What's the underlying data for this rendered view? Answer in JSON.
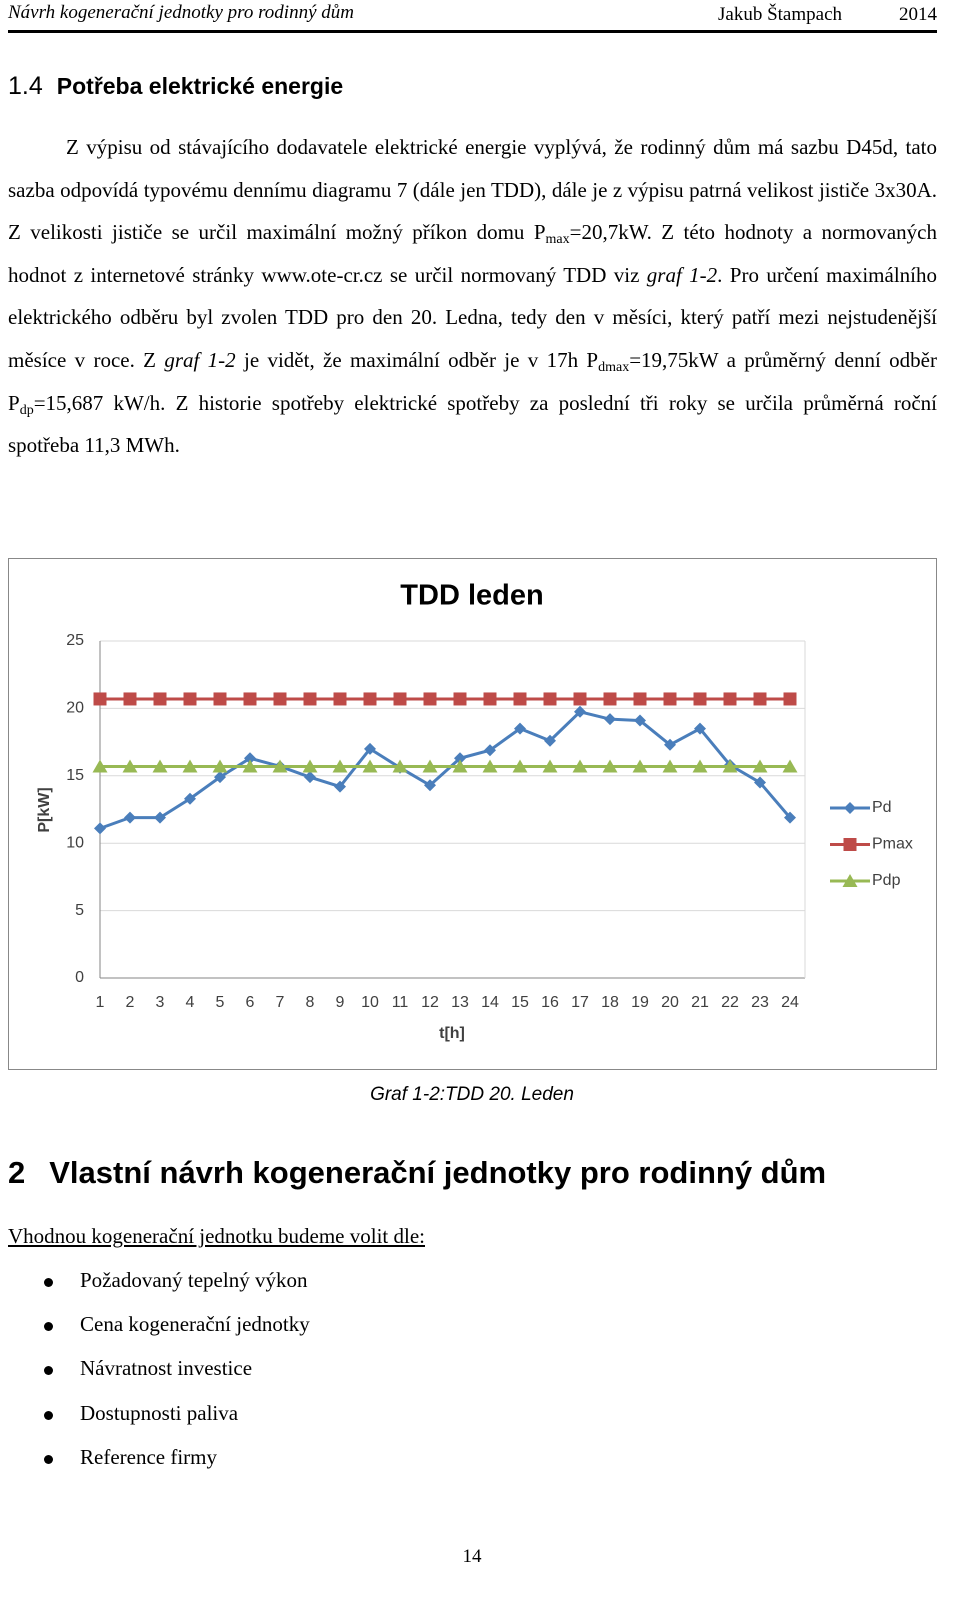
{
  "header": {
    "title": "Návrh kogenerační jednotky pro rodinný dům",
    "author": "Jakub Štampach",
    "year": "2014"
  },
  "section": {
    "number": "1.4",
    "title": "Potřeba elektrické energie"
  },
  "paragraph": [
    "Z výpisu od stávajícího dodavatele elektrické energie vyplývá, že rodinný dům má sazbu D45d, tato sazba odpovídá typovému dennímu diagramu 7 (dále jen TDD), dále je z výpisu patrná velikost jističe 3x30A. Z velikosti jističe se určil maximální možný příkon domu P",
    {
      "text": "max",
      "style": "sub"
    },
    "=20,7kW. Z této hodnoty a normovaných hodnot z internetové stránky www.ote-cr.cz se určil normovaný TDD viz ",
    {
      "text": "graf 1-2",
      "style": "italic"
    },
    ". Pro určení maximálního elektrického odběru byl zvolen TDD pro den 20. Ledna, tedy den v měsíci, který patří mezi nejstudenější měsíce v roce. Z ",
    {
      "text": "graf 1-2",
      "style": "italic"
    },
    " je vidět, že maximální odběr je v 17h P",
    {
      "text": "dmax",
      "style": "sub"
    },
    "=19,75kW a průměrný denní odběr P",
    {
      "text": "dp",
      "style": "sub"
    },
    "=15,687 kW/h. Z historie spotřeby elektrické spotřeby za poslední tři roky se určila průměrná roční spotřeba 11,3 MWh."
  ],
  "chart_data": {
    "type": "line",
    "title": "TDD leden",
    "x_label": "t[h]",
    "y_label": "P[kW]",
    "categories": [
      "1",
      "2",
      "3",
      "4",
      "5",
      "6",
      "7",
      "8",
      "9",
      "10",
      "11",
      "12",
      "13",
      "14",
      "15",
      "16",
      "17",
      "18",
      "19",
      "20",
      "21",
      "22",
      "23",
      "24"
    ],
    "series": [
      {
        "name": "Pd",
        "color": "#4a7ebb",
        "marker": "diamond",
        "values": [
          11.1,
          11.9,
          11.9,
          13.3,
          14.9,
          16.3,
          15.7,
          14.9,
          14.2,
          17.0,
          15.6,
          14.3,
          16.3,
          16.9,
          18.5,
          17.6,
          19.75,
          19.2,
          19.1,
          17.3,
          18.5,
          15.8,
          14.5,
          11.9
        ]
      },
      {
        "name": "Pmax",
        "color": "#be4b48",
        "marker": "square",
        "values": [
          20.7,
          20.7,
          20.7,
          20.7,
          20.7,
          20.7,
          20.7,
          20.7,
          20.7,
          20.7,
          20.7,
          20.7,
          20.7,
          20.7,
          20.7,
          20.7,
          20.7,
          20.7,
          20.7,
          20.7,
          20.7,
          20.7,
          20.7,
          20.7
        ]
      },
      {
        "name": "Pdp",
        "color": "#98b954",
        "marker": "triangle",
        "values": [
          15.687,
          15.687,
          15.687,
          15.687,
          15.687,
          15.687,
          15.687,
          15.687,
          15.687,
          15.687,
          15.687,
          15.687,
          15.687,
          15.687,
          15.687,
          15.687,
          15.687,
          15.687,
          15.687,
          15.687,
          15.687,
          15.687,
          15.687,
          15.687
        ]
      }
    ],
    "ylim": [
      0,
      25
    ],
    "yticks": [
      0,
      5,
      10,
      15,
      20,
      25
    ],
    "grid": true,
    "legend": "right"
  },
  "caption": "Graf 1-2:TDD 20. Leden",
  "section2": {
    "number": "2",
    "title": "Vlastní návrh kogenerační jednotky pro rodinný dům"
  },
  "list_intro": "Vhodnou kogenerační jednotku budeme volit dle:",
  "list": [
    "Požadovaný tepelný výkon",
    "Cena kogenerační jednotky",
    "Návratnost investice",
    "Dostupnosti paliva",
    "Reference firmy"
  ],
  "page_number": "14"
}
